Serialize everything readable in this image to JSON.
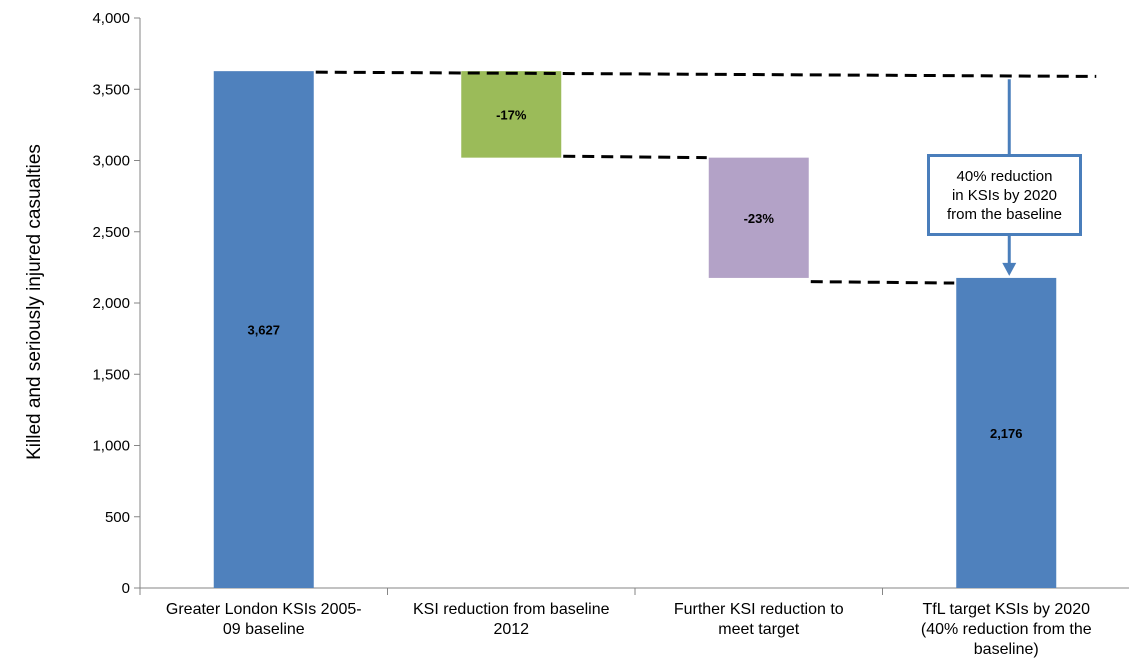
{
  "chart_data": {
    "type": "bar",
    "subtype": "waterfall",
    "categories": [
      [
        "Greater London KSIs 2005-",
        "09 baseline"
      ],
      [
        "KSI reduction from baseline",
        "2012"
      ],
      [
        "Further KSI reduction to",
        "meet target"
      ],
      [
        "TfL target KSIs by 2020",
        "(40% reduction from the",
        "baseline)"
      ]
    ],
    "bars": [
      {
        "bottom": 0,
        "top": 3627,
        "label": "3,627",
        "color": "#4F81BD"
      },
      {
        "bottom": 3020,
        "top": 3627,
        "label": "-17%",
        "color": "#9BBB59"
      },
      {
        "bottom": 2176,
        "top": 3020,
        "label": "-23%",
        "color": "#B3A2C7"
      },
      {
        "bottom": 0,
        "top": 2176,
        "label": "2,176",
        "color": "#4F81BD"
      }
    ],
    "ylabel": "Killed and seriously injured casualties",
    "ylim": [
      0,
      4000
    ],
    "yticks": [
      0,
      500,
      1000,
      1500,
      2000,
      2500,
      3000,
      3500,
      4000
    ],
    "ytick_labels": [
      "0",
      "500",
      "1,000",
      "1,500",
      "2,000",
      "2,500",
      "3,000",
      "3,500",
      "4,000"
    ],
    "connectors": [
      {
        "from_category": 0,
        "to_category": 3,
        "y_start": 3620,
        "y_end": 3590
      },
      {
        "from_category": 1,
        "to_category": 2,
        "y_start": 3030,
        "y_end": 3020
      },
      {
        "from_category": 2,
        "to_category": 3,
        "y_start": 2150,
        "y_end": 2140
      }
    ],
    "annotation": {
      "lines": [
        "40% reduction",
        "in KSIs by 2020",
        "from the baseline"
      ],
      "arrow_from": 3570,
      "arrow_to": 2190,
      "color": "#4A7EBB"
    },
    "grid": false,
    "legend": "none"
  }
}
